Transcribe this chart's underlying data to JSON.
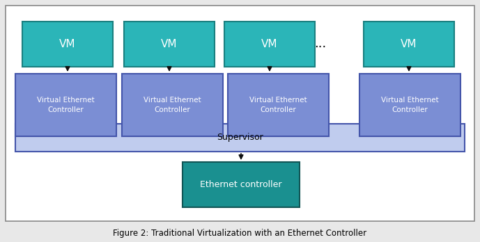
{
  "fig_bg": "#e8e8e8",
  "inner_bg": "#f0f0f0",
  "outer_border_color": "#888888",
  "vm_color": "#2bb5b8",
  "vm_border_color": "#1a8080",
  "vm_text_color": "#ffffff",
  "vec_color": "#7b8ed4",
  "vec_border_color": "#4455aa",
  "supervisor_color": "#c0ccee",
  "supervisor_border_color": "#4455aa",
  "eth_color": "#1a9090",
  "eth_text_color": "#ffffff",
  "eth_border_color": "#115555",
  "arrow_color": "#111111",
  "title": "Figure 2: Traditional Virtualization with an Ethernet Controller",
  "title_fontsize": 8.5,
  "vm_boxes": [
    {
      "label": "VM"
    },
    {
      "label": "VM"
    },
    {
      "label": "VM"
    },
    {
      "label": "VM"
    }
  ],
  "vec_labels": [
    "Virtual Ethernet\nController",
    "Virtual Ethernet\nController",
    "Virtual Ethernet\nController",
    "Virtual Ethernet\nController"
  ],
  "supervisor_label": "Supervisor",
  "eth_label": "Ethernet controller",
  "dots": "...",
  "vm_fontsize": 11,
  "vec_fontsize": 7.5,
  "supervisor_fontsize": 9,
  "eth_fontsize": 9
}
